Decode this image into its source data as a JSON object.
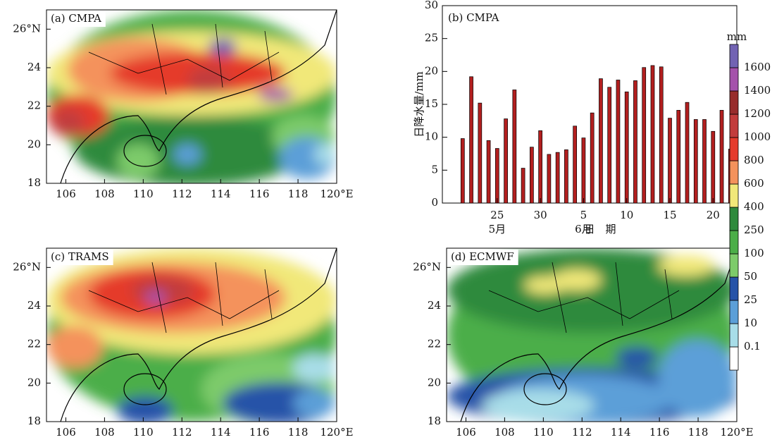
{
  "chart_data": [
    {
      "type": "map",
      "title": "(a) CMPA",
      "xlim": [
        105,
        120
      ],
      "ylim": [
        18,
        27
      ],
      "xticks": [
        106,
        108,
        110,
        112,
        114,
        116,
        118,
        {
          "value": 120,
          "label": "120°E"
        }
      ],
      "yticks": [
        18,
        20,
        22,
        24,
        {
          "value": 26,
          "label": "26°N"
        }
      ]
    },
    {
      "type": "bar",
      "title": "(b) CMPA",
      "ylabel": "日降水量/mm",
      "xlabel": "日　期",
      "categories": [
        null,
        null,
        null,
        null,
        "25",
        null,
        null,
        null,
        null,
        "30",
        null,
        null,
        null,
        null,
        "5",
        null,
        null,
        null,
        null,
        "10",
        null,
        null,
        null,
        null,
        "15",
        null,
        null,
        null,
        null,
        "20",
        null,
        null
      ],
      "month_categories": [
        null,
        null,
        null,
        null,
        "5月",
        null,
        null,
        null,
        null,
        null,
        null,
        null,
        null,
        null,
        "6月",
        null,
        null,
        null,
        null,
        null,
        null,
        null,
        null,
        null,
        null,
        null,
        null,
        null,
        null,
        null,
        null,
        null
      ],
      "values": [
        9.8,
        19.2,
        15.2,
        9.5,
        8.3,
        12.8,
        17.2,
        5.3,
        8.5,
        11,
        7.4,
        7.7,
        8.1,
        11.7,
        9.9,
        13.7,
        18.9,
        17.6,
        18.7,
        16.9,
        18.6,
        20.6,
        20.9,
        20.7,
        12.9,
        14.1,
        15.3,
        12.7,
        12.7,
        10.9,
        14.1,
        8.2
      ],
      "color": "#b21f1f",
      "ylim": [
        0,
        30
      ],
      "yticks": [
        0,
        5,
        10,
        15,
        20,
        25,
        30
      ]
    },
    {
      "type": "map",
      "title": "(c) TRAMS",
      "xlim": [
        105,
        120
      ],
      "ylim": [
        18,
        27
      ],
      "xticks": [
        106,
        108,
        110,
        112,
        114,
        116,
        118,
        {
          "value": 120,
          "label": "120°E"
        }
      ],
      "yticks": [
        18,
        20,
        22,
        24,
        {
          "value": 26,
          "label": "26°N"
        }
      ]
    },
    {
      "type": "map",
      "title": "(d) ECMWF",
      "xlim": [
        105,
        120
      ],
      "ylim": [
        18,
        27
      ],
      "xticks": [
        106,
        108,
        110,
        112,
        114,
        116,
        118,
        {
          "value": 120,
          "label": "120°E"
        }
      ],
      "yticks": [
        18,
        20,
        22,
        24,
        {
          "value": 26,
          "label": "26°N"
        }
      ]
    },
    {
      "type": "colorbar",
      "unit": "mm",
      "levels": [
        0.1,
        10,
        25,
        50,
        100,
        250,
        400,
        600,
        800,
        1000,
        1200,
        1400,
        1600
      ],
      "colors": [
        "#ffffff",
        "#a8dde8",
        "#5b9fd8",
        "#2653a8",
        "#7dcb6a",
        "#4bae48",
        "#2e8a3c",
        "#f1e879",
        "#f4925c",
        "#e53b2c",
        "#c23c3c",
        "#982c2c",
        "#a552ab",
        "#7263b3"
      ]
    }
  ]
}
